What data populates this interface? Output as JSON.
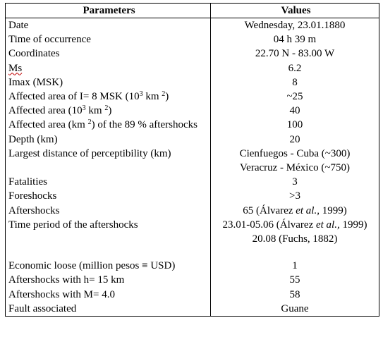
{
  "table": {
    "headers": {
      "parameters": "Parameters",
      "values": "Values"
    },
    "rows": [
      {
        "parameter": "Date",
        "value": "Wednesday, 23.01.1880"
      },
      {
        "parameter": "Time of occurrence",
        "value": "04 h 39 m"
      },
      {
        "parameter": "Coordinates",
        "value": "22.70 N - 83.00 W"
      },
      {
        "parameter": "Ms",
        "value": "6.2"
      },
      {
        "parameter": "Imax (MSK)",
        "value": "8"
      },
      {
        "parameter_a": "Affected area of I= 8 MSK (10",
        "parameter_sup1": "3",
        "parameter_b": " km ",
        "parameter_sup2": "2",
        "parameter_c": ")",
        "value": "~25"
      },
      {
        "parameter_a": "Affected area (10",
        "parameter_sup1": "3",
        "parameter_b": " km ",
        "parameter_sup2": "2",
        "parameter_c": ")",
        "value": "40"
      },
      {
        "parameter_a": "Affected area (km ",
        "parameter_sup": "2",
        "parameter_b": ") of the 89 % aftershocks",
        "value": "100"
      },
      {
        "parameter": "Depth (km)",
        "value": "20"
      },
      {
        "parameter": "Largest distance of perceptibility (km)",
        "value": "Cienfuegos - Cuba (~300)",
        "value_2": "Veracruz - México (~750)"
      },
      {
        "parameter": "Fatalities",
        "value": "3"
      },
      {
        "parameter": "Foreshocks",
        "value": ">3"
      },
      {
        "parameter": "Aftershocks",
        "value_a": "65 (Álvarez ",
        "value_em": "et al.,",
        "value_b": " 1999)"
      },
      {
        "parameter": "Time period of the aftershocks",
        "value_a": "23.01-05.06 (Álvarez ",
        "value_em": "et al.,",
        "value_b": " 1999)",
        "value_2": "20.08 (Fuchs, 1882)"
      },
      {
        "parameter": "Economic loose (million pesos ≡ USD)",
        "value": "1"
      },
      {
        "parameter": "Aftershocks with h= 15 km",
        "value": "55"
      },
      {
        "parameter": "Aftershocks with M= 4.0",
        "value": "58"
      },
      {
        "parameter": "Fault associated",
        "value": "Guane"
      }
    ]
  }
}
